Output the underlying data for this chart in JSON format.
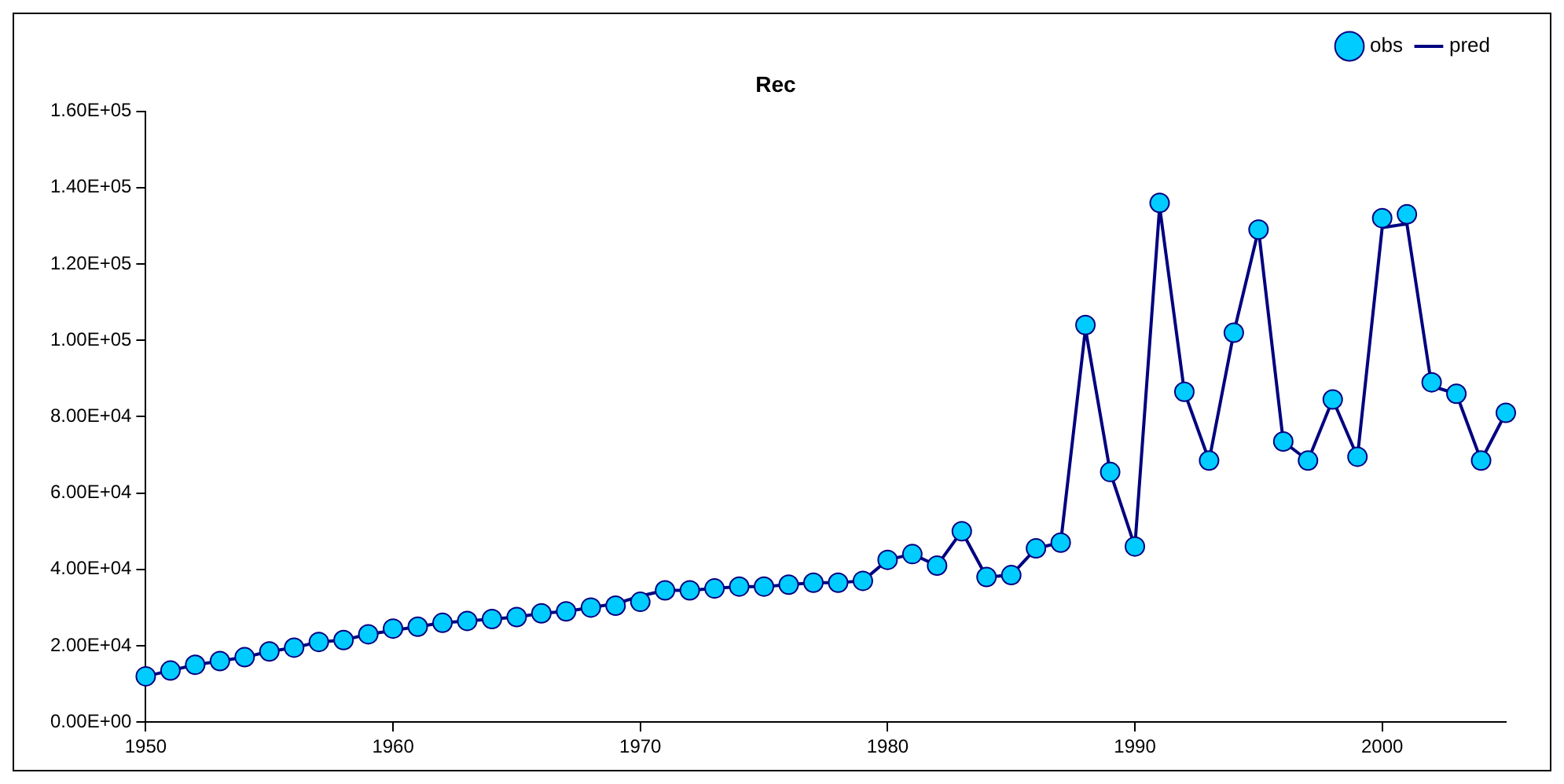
{
  "chart_data": {
    "type": "line",
    "title": "Rec",
    "x": [
      1950,
      1951,
      1952,
      1953,
      1954,
      1955,
      1956,
      1957,
      1958,
      1959,
      1960,
      1961,
      1962,
      1963,
      1964,
      1965,
      1966,
      1967,
      1968,
      1969,
      1970,
      1971,
      1972,
      1973,
      1974,
      1975,
      1976,
      1977,
      1978,
      1979,
      1980,
      1981,
      1982,
      1983,
      1984,
      1985,
      1986,
      1987,
      1988,
      1989,
      1990,
      1991,
      1992,
      1993,
      1994,
      1995,
      1996,
      1997,
      1998,
      1999,
      2000,
      2001,
      2002,
      2003,
      2004,
      2005
    ],
    "series": [
      {
        "name": "obs",
        "type": "scatter",
        "marker": "circle",
        "color": "#00ccff",
        "values": [
          12000,
          13500,
          15000,
          16000,
          17000,
          18500,
          19500,
          21000,
          21500,
          23000,
          24500,
          25000,
          26000,
          26500,
          27000,
          27500,
          28500,
          29000,
          30000,
          30500,
          31500,
          34500,
          34500,
          35000,
          35500,
          35500,
          36000,
          36500,
          36500,
          37000,
          42500,
          44000,
          41000,
          50000,
          38000,
          38500,
          45500,
          47000,
          104000,
          65500,
          46000,
          136000,
          86500,
          68500,
          102000,
          129000,
          73500,
          68500,
          84500,
          69500,
          132000,
          133000,
          89000,
          86000,
          68500,
          81000
        ]
      },
      {
        "name": "pred",
        "type": "line",
        "marker": "none",
        "color": "#000080",
        "values": [
          12000,
          13500,
          15000,
          16000,
          17000,
          18500,
          19500,
          21000,
          21500,
          23000,
          24000,
          25000,
          26000,
          26500,
          27000,
          27500,
          28500,
          29000,
          30000,
          31000,
          33000,
          34500,
          34500,
          35000,
          35500,
          35500,
          36000,
          36500,
          36500,
          37000,
          42500,
          44000,
          41000,
          50000,
          38000,
          38500,
          45500,
          47000,
          103000,
          65500,
          46000,
          135000,
          86500,
          68500,
          102000,
          129000,
          73500,
          68500,
          84500,
          69500,
          129500,
          130500,
          88000,
          86000,
          68500,
          81000
        ]
      }
    ],
    "xlim": [
      1950,
      2005
    ],
    "xticks": [
      1950,
      1960,
      1970,
      1980,
      1990,
      2000
    ],
    "ylim": [
      0,
      160000
    ],
    "yticks": [
      {
        "value": 0,
        "label": "0.00E+00"
      },
      {
        "value": 20000,
        "label": "2.00E+04"
      },
      {
        "value": 40000,
        "label": "4.00E+04"
      },
      {
        "value": 60000,
        "label": "6.00E+04"
      },
      {
        "value": 80000,
        "label": "8.00E+04"
      },
      {
        "value": 100000,
        "label": "1.00E+05"
      },
      {
        "value": 120000,
        "label": "1.20E+05"
      },
      {
        "value": 140000,
        "label": "1.40E+05"
      },
      {
        "value": 160000,
        "label": "1.60E+05"
      }
    ],
    "grid": false,
    "legend": "top right"
  }
}
